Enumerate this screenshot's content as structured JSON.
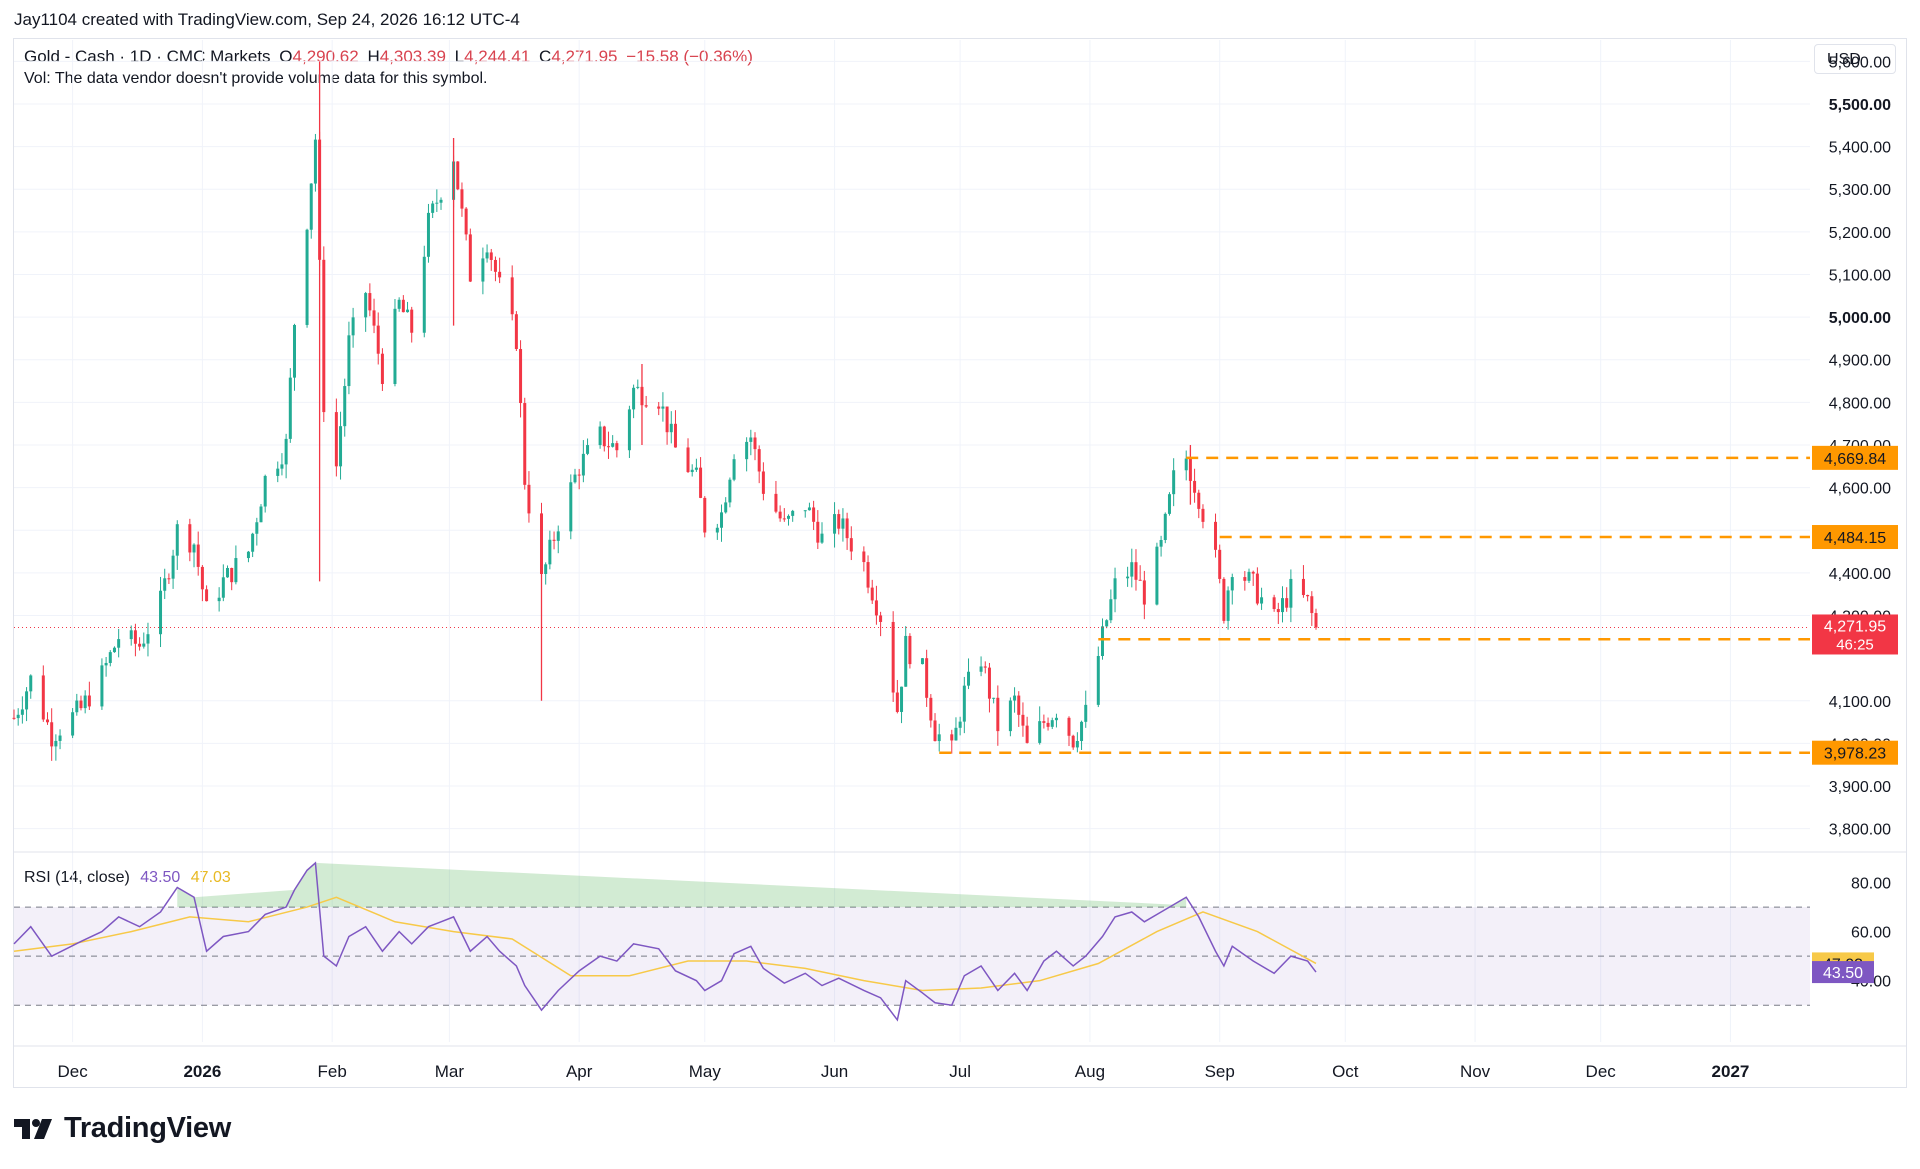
{
  "attribution": "Jay1104 created with TradingView.com, Sep 24, 2026 16:12 UTC-4",
  "legend": {
    "symbol": "Gold - Cash · 1D · CMC Markets",
    "o_label": "O",
    "o_val": "4,290.62",
    "h_label": "H",
    "h_val": "4,303.39",
    "l_label": "L",
    "l_val": "4,244.41",
    "c_label": "C",
    "c_val": "4,271.95",
    "change": "−15.58 (−0.36%)",
    "vol_note": "Vol: The data vendor doesn't provide volume data for this symbol."
  },
  "currency": "USD",
  "rsi_legend": {
    "label": "RSI (14, close)",
    "rsi": "43.50",
    "ma": "47.03"
  },
  "brand": "TradingView",
  "colors": {
    "up": "#22ab94",
    "down": "#f23645",
    "rsi_line": "#7e57c2",
    "rsi_ma": "#f7c948",
    "level": "#ff9800",
    "band": "#7e57c2"
  },
  "chart_data": {
    "type": "candlestick",
    "timeframe": "1D",
    "ylim": [
      3750,
      5650
    ],
    "y_ticks": [
      "5,600.00",
      "5,500.00",
      "5,400.00",
      "5,300.00",
      "5,200.00",
      "5,100.00",
      "5,000.00",
      "4,900.00",
      "4,800.00",
      "4,700.00",
      "4,600.00",
      "4,500.00",
      "4,400.00",
      "4,300.00",
      "4,100.00",
      "4,000.00",
      "3,900.00",
      "3,800.00"
    ],
    "y_tick_values": [
      5600,
      5500,
      5400,
      5300,
      5200,
      5100,
      5000,
      4900,
      4800,
      4700,
      4600,
      4500,
      4400,
      4300,
      4100,
      4000,
      3900,
      3800
    ],
    "bold_ticks": [
      "5,500.00",
      "5,000.00"
    ],
    "x_ticks": [
      {
        "label": "Dec",
        "date": "2025-12-01"
      },
      {
        "label": "2026",
        "date": "2026-01-01",
        "bold": true
      },
      {
        "label": "Feb",
        "date": "2026-02-01"
      },
      {
        "label": "Mar",
        "date": "2026-03-01"
      },
      {
        "label": "Apr",
        "date": "2026-04-01"
      },
      {
        "label": "May",
        "date": "2026-05-01"
      },
      {
        "label": "Jun",
        "date": "2026-06-01"
      },
      {
        "label": "Jul",
        "date": "2026-07-01"
      },
      {
        "label": "Aug",
        "date": "2026-08-01"
      },
      {
        "label": "Sep",
        "date": "2026-09-01"
      },
      {
        "label": "Oct",
        "date": "2026-10-01"
      },
      {
        "label": "Nov",
        "date": "2026-11-01"
      },
      {
        "label": "Dec",
        "date": "2026-12-01"
      },
      {
        "label": "2027",
        "date": "2027-01-01",
        "bold": true
      }
    ],
    "price_path": [
      [
        "2025-11-17",
        4060
      ],
      [
        "2025-11-21",
        4150
      ],
      [
        "2025-11-26",
        4020
      ],
      [
        "2025-12-03",
        4080
      ],
      [
        "2025-12-08",
        4160
      ],
      [
        "2025-12-12",
        4250
      ],
      [
        "2025-12-17",
        4230
      ],
      [
        "2025-12-22",
        4330
      ],
      [
        "2025-12-26",
        4500
      ],
      [
        "2025-12-30",
        4470
      ],
      [
        "2026-01-02",
        4310
      ],
      [
        "2026-01-06",
        4380
      ],
      [
        "2026-01-12",
        4450
      ],
      [
        "2026-01-16",
        4620
      ],
      [
        "2026-01-21",
        4700
      ],
      [
        "2026-01-23",
        4990
      ],
      [
        "2026-01-26",
        5230
      ],
      [
        "2026-01-28",
        5420
      ],
      [
        "2026-01-30",
        4800
      ],
      [
        "2026-02-02",
        4650
      ],
      [
        "2026-02-05",
        4940
      ],
      [
        "2026-02-09",
        5060
      ],
      [
        "2026-02-13",
        4870
      ],
      [
        "2026-02-17",
        5030
      ],
      [
        "2026-02-20",
        4970
      ],
      [
        "2026-02-24",
        5220
      ],
      [
        "2026-02-27",
        5300
      ],
      [
        "2026-03-02",
        5380
      ],
      [
        "2026-03-06",
        5100
      ],
      [
        "2026-03-10",
        5180
      ],
      [
        "2026-03-13",
        5070
      ],
      [
        "2026-03-17",
        4950
      ],
      [
        "2026-03-19",
        4620
      ],
      [
        "2026-03-23",
        4380
      ],
      [
        "2026-03-27",
        4520
      ],
      [
        "2026-04-01",
        4650
      ],
      [
        "2026-04-06",
        4720
      ],
      [
        "2026-04-10",
        4690
      ],
      [
        "2026-04-14",
        4830
      ],
      [
        "2026-04-20",
        4810
      ],
      [
        "2026-04-24",
        4690
      ],
      [
        "2026-04-29",
        4620
      ],
      [
        "2026-05-01",
        4510
      ],
      [
        "2026-05-05",
        4540
      ],
      [
        "2026-05-08",
        4690
      ],
      [
        "2026-05-12",
        4720
      ],
      [
        "2026-05-15",
        4600
      ],
      [
        "2026-05-20",
        4510
      ],
      [
        "2026-05-25",
        4560
      ],
      [
        "2026-05-29",
        4480
      ],
      [
        "2026-06-02",
        4520
      ],
      [
        "2026-06-08",
        4420
      ],
      [
        "2026-06-12",
        4300
      ],
      [
        "2026-06-16",
        4080
      ],
      [
        "2026-06-18",
        4230
      ],
      [
        "2026-06-22",
        4170
      ],
      [
        "2026-06-25",
        4030
      ],
      [
        "2026-06-29",
        3980
      ],
      [
        "2026-07-02",
        4120
      ],
      [
        "2026-07-06",
        4200
      ],
      [
        "2026-07-10",
        4040
      ],
      [
        "2026-07-14",
        4100
      ],
      [
        "2026-07-17",
        3990
      ],
      [
        "2026-07-21",
        4050
      ],
      [
        "2026-07-24",
        4080
      ],
      [
        "2026-07-28",
        4010
      ],
      [
        "2026-07-31",
        4070
      ],
      [
        "2026-08-04",
        4250
      ],
      [
        "2026-08-07",
        4370
      ],
      [
        "2026-08-11",
        4410
      ],
      [
        "2026-08-14",
        4350
      ],
      [
        "2026-08-18",
        4460
      ],
      [
        "2026-08-21",
        4620
      ],
      [
        "2026-08-24",
        4670
      ],
      [
        "2026-08-27",
        4580
      ],
      [
        "2026-08-31",
        4430
      ],
      [
        "2026-09-02",
        4310
      ],
      [
        "2026-09-04",
        4420
      ],
      [
        "2026-09-09",
        4370
      ],
      [
        "2026-09-14",
        4290
      ],
      [
        "2026-09-18",
        4360
      ],
      [
        "2026-09-22",
        4330
      ],
      [
        "2026-09-24",
        4272
      ]
    ],
    "spikes": [
      {
        "date": "2026-01-29",
        "high": 5600,
        "low": 4380
      },
      {
        "date": "2026-03-02",
        "high": 5420,
        "low": 4980
      },
      {
        "date": "2026-03-23",
        "high": 4480,
        "low": 4100
      },
      {
        "date": "2026-04-16",
        "high": 4890,
        "low": 4700
      },
      {
        "date": "2026-08-25",
        "high": 4700,
        "low": 4560
      }
    ],
    "levels": [
      {
        "price": 4669.84,
        "label": "4,669.84",
        "from": "2026-08-24"
      },
      {
        "price": 4484.15,
        "label": "4,484.15",
        "from": "2026-09-01"
      },
      {
        "price": 4244.37,
        "label": "4,244.37",
        "from": "2026-08-03"
      },
      {
        "price": 3978.23,
        "label": "3,978.23",
        "from": "2026-06-26"
      }
    ],
    "current": {
      "price": 4271.95,
      "label": "4,271.95",
      "countdown": "46:25"
    },
    "rsi": {
      "ylim": [
        15,
        90
      ],
      "ticks": [
        "80.00",
        "60.00",
        "40.00"
      ],
      "tick_values": [
        80,
        60,
        40
      ],
      "bands": [
        70,
        50,
        30
      ],
      "rsi_label": "43.50",
      "ma_label": "47.03",
      "rsi_value": 43.5,
      "ma_value": 47.03,
      "rsi_path": [
        [
          "2025-11-17",
          55
        ],
        [
          "2025-11-21",
          62
        ],
        [
          "2025-11-26",
          50
        ],
        [
          "2025-12-03",
          56
        ],
        [
          "2025-12-08",
          60
        ],
        [
          "2025-12-12",
          66
        ],
        [
          "2025-12-17",
          62
        ],
        [
          "2025-12-22",
          68
        ],
        [
          "2025-12-26",
          78
        ],
        [
          "2025-12-30",
          74
        ],
        [
          "2026-01-02",
          52
        ],
        [
          "2026-01-06",
          58
        ],
        [
          "2026-01-12",
          60
        ],
        [
          "2026-01-16",
          67
        ],
        [
          "2026-01-21",
          70
        ],
        [
          "2026-01-23",
          77
        ],
        [
          "2026-01-26",
          85
        ],
        [
          "2026-01-28",
          88
        ],
        [
          "2026-01-30",
          50
        ],
        [
          "2026-02-02",
          46
        ],
        [
          "2026-02-05",
          58
        ],
        [
          "2026-02-09",
          62
        ],
        [
          "2026-02-13",
          52
        ],
        [
          "2026-02-17",
          60
        ],
        [
          "2026-02-20",
          55
        ],
        [
          "2026-02-24",
          62
        ],
        [
          "2026-02-27",
          64
        ],
        [
          "2026-03-02",
          66
        ],
        [
          "2026-03-06",
          52
        ],
        [
          "2026-03-10",
          58
        ],
        [
          "2026-03-13",
          52
        ],
        [
          "2026-03-17",
          46
        ],
        [
          "2026-03-19",
          38
        ],
        [
          "2026-03-23",
          28
        ],
        [
          "2026-03-27",
          36
        ],
        [
          "2026-04-01",
          44
        ],
        [
          "2026-04-06",
          50
        ],
        [
          "2026-04-10",
          48
        ],
        [
          "2026-04-14",
          55
        ],
        [
          "2026-04-20",
          53
        ],
        [
          "2026-04-24",
          44
        ],
        [
          "2026-04-29",
          40
        ],
        [
          "2026-05-01",
          36
        ],
        [
          "2026-05-05",
          40
        ],
        [
          "2026-05-08",
          51
        ],
        [
          "2026-05-12",
          54
        ],
        [
          "2026-05-15",
          45
        ],
        [
          "2026-05-20",
          39
        ],
        [
          "2026-05-25",
          43
        ],
        [
          "2026-05-29",
          38
        ],
        [
          "2026-06-02",
          41
        ],
        [
          "2026-06-08",
          36
        ],
        [
          "2026-06-12",
          33
        ],
        [
          "2026-06-16",
          24
        ],
        [
          "2026-06-18",
          40
        ],
        [
          "2026-06-22",
          35
        ],
        [
          "2026-06-25",
          31
        ],
        [
          "2026-06-29",
          30
        ],
        [
          "2026-07-02",
          42
        ],
        [
          "2026-07-06",
          46
        ],
        [
          "2026-07-10",
          36
        ],
        [
          "2026-07-14",
          43
        ],
        [
          "2026-07-17",
          36
        ],
        [
          "2026-07-21",
          48
        ],
        [
          "2026-07-24",
          52
        ],
        [
          "2026-07-28",
          46
        ],
        [
          "2026-07-31",
          50
        ],
        [
          "2026-08-04",
          58
        ],
        [
          "2026-08-07",
          66
        ],
        [
          "2026-08-11",
          68
        ],
        [
          "2026-08-14",
          64
        ],
        [
          "2026-08-18",
          68
        ],
        [
          "2026-08-21",
          71
        ],
        [
          "2026-08-24",
          74
        ],
        [
          "2026-08-27",
          66
        ],
        [
          "2026-08-31",
          52
        ],
        [
          "2026-09-02",
          46
        ],
        [
          "2026-09-04",
          54
        ],
        [
          "2026-09-09",
          48
        ],
        [
          "2026-09-14",
          43
        ],
        [
          "2026-09-18",
          50
        ],
        [
          "2026-09-22",
          48
        ],
        [
          "2026-09-24",
          43.5
        ]
      ],
      "ma_path": [
        [
          "2025-11-17",
          52
        ],
        [
          "2025-12-01",
          55
        ],
        [
          "2025-12-15",
          60
        ],
        [
          "2025-12-29",
          66
        ],
        [
          "2026-01-12",
          64
        ],
        [
          "2026-01-26",
          70
        ],
        [
          "2026-02-02",
          74
        ],
        [
          "2026-02-16",
          64
        ],
        [
          "2026-03-02",
          60
        ],
        [
          "2026-03-16",
          57
        ],
        [
          "2026-03-30",
          42
        ],
        [
          "2026-04-13",
          42
        ],
        [
          "2026-04-27",
          48
        ],
        [
          "2026-05-11",
          48
        ],
        [
          "2026-05-25",
          45
        ],
        [
          "2026-06-08",
          40
        ],
        [
          "2026-06-22",
          36
        ],
        [
          "2026-07-06",
          37
        ],
        [
          "2026-07-20",
          40
        ],
        [
          "2026-08-03",
          47
        ],
        [
          "2026-08-17",
          60
        ],
        [
          "2026-08-28",
          68
        ],
        [
          "2026-09-10",
          60
        ],
        [
          "2026-09-24",
          47.03
        ]
      ]
    }
  }
}
